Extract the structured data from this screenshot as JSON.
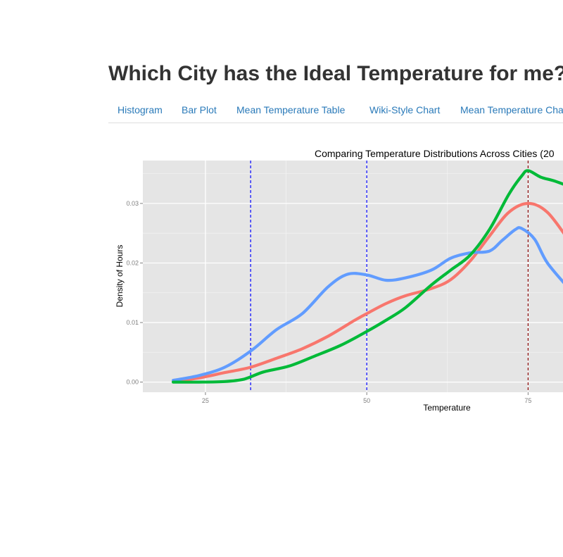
{
  "header": {
    "title": "Which City has the Ideal Temperature for me?"
  },
  "nav": {
    "tabs": [
      "Histogram",
      "Bar Plot",
      "Mean Temperature Table",
      "Wiki-Style Chart",
      "Mean Temperature Chart"
    ]
  },
  "chart_data": {
    "type": "line",
    "title": "Comparing Temperature Distributions Across Cities (20",
    "xlabel": "Temperature",
    "ylabel": "Density of Hours",
    "xlim": [
      15.3,
      81.5
    ],
    "ylim": [
      -0.0017,
      0.0372
    ],
    "xticks": [
      "25",
      "50",
      "75"
    ],
    "yticks": [
      "0.00",
      "0.01",
      "0.02",
      "0.03"
    ],
    "grid": true,
    "reference_lines": [
      {
        "x": 32,
        "color": "#0000ff",
        "style": "dashed"
      },
      {
        "x": 50,
        "color": "#0000ff",
        "style": "dashed"
      },
      {
        "x": 75,
        "color": "#8b0000",
        "style": "dashed"
      }
    ],
    "series": [
      {
        "color": "#f8766d",
        "x": [
          20,
          24,
          28,
          32,
          36,
          40,
          44,
          48,
          50,
          53,
          56,
          60,
          63,
          66,
          69,
          72,
          75,
          78,
          81.5
        ],
        "y": [
          0.0001,
          0.0007,
          0.0016,
          0.0025,
          0.004,
          0.0056,
          0.0077,
          0.0103,
          0.0115,
          0.0132,
          0.0145,
          0.0157,
          0.0172,
          0.0203,
          0.0245,
          0.0285,
          0.03,
          0.0285,
          0.0235
        ]
      },
      {
        "color": "#619cff",
        "x": [
          20,
          24,
          28,
          32,
          36,
          40,
          44,
          47,
          50,
          53,
          56,
          60,
          63,
          66,
          69,
          71,
          73,
          74,
          76,
          78,
          81.5
        ],
        "y": [
          0.0003,
          0.0011,
          0.0025,
          0.0052,
          0.0088,
          0.0115,
          0.016,
          0.0181,
          0.018,
          0.0171,
          0.0175,
          0.0188,
          0.0208,
          0.0217,
          0.022,
          0.0238,
          0.0256,
          0.0258,
          0.024,
          0.02,
          0.0155
        ]
      },
      {
        "color": "#00ba38",
        "x": [
          20,
          24,
          28,
          31,
          34,
          38,
          42,
          46,
          50,
          53,
          56,
          60,
          63,
          66,
          69,
          72,
          74,
          75,
          77,
          79,
          81.5
        ],
        "y": [
          0.0,
          0.0,
          0.0001,
          0.0005,
          0.0017,
          0.0027,
          0.0044,
          0.0062,
          0.0085,
          0.0104,
          0.0125,
          0.0163,
          0.0188,
          0.0213,
          0.0256,
          0.0315,
          0.0346,
          0.0355,
          0.0344,
          0.0338,
          0.0328
        ]
      }
    ]
  }
}
